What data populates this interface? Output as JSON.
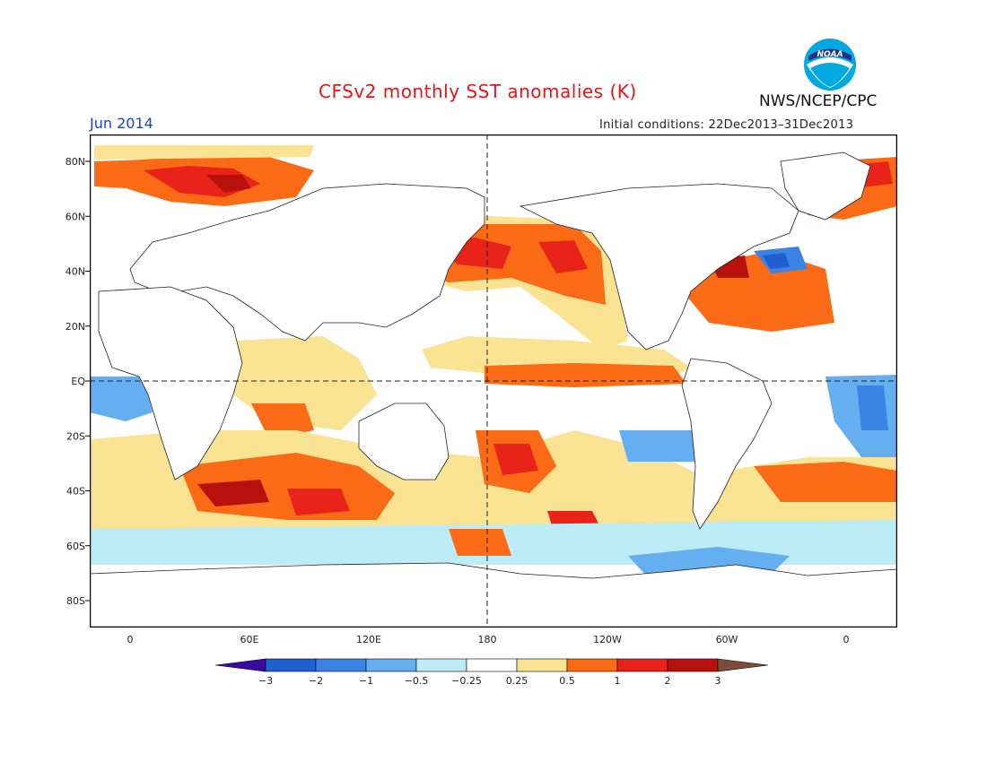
{
  "title": "CFSv2 monthly SST anomalies (K)",
  "valid_month": "Jun 2014",
  "initial_conditions": "Initial conditions: 22Dec2013–31Dec2013",
  "agency": "NWS/NCEP/CPC",
  "logo_text": "NOAA",
  "map": {
    "lat_labels": [
      "80N",
      "60N",
      "40N",
      "20N",
      "EQ",
      "20S",
      "40S",
      "60S",
      "80S"
    ],
    "lon_labels": [
      "0",
      "60E",
      "120E",
      "180",
      "120W",
      "60W",
      "0"
    ]
  },
  "colorbar": {
    "tick_labels": [
      "−3",
      "−2",
      "−1",
      "−0.5",
      "−0.25",
      "0.25",
      "0.5",
      "1",
      "2",
      "3"
    ],
    "colors": [
      "#3a0aa0",
      "#1f5fd0",
      "#3b84e4",
      "#65aef0",
      "#bcecf5",
      "#ffffff",
      "#fbe394",
      "#fb6a14",
      "#e8241a",
      "#b8100c",
      "#7a4e3a"
    ]
  }
}
